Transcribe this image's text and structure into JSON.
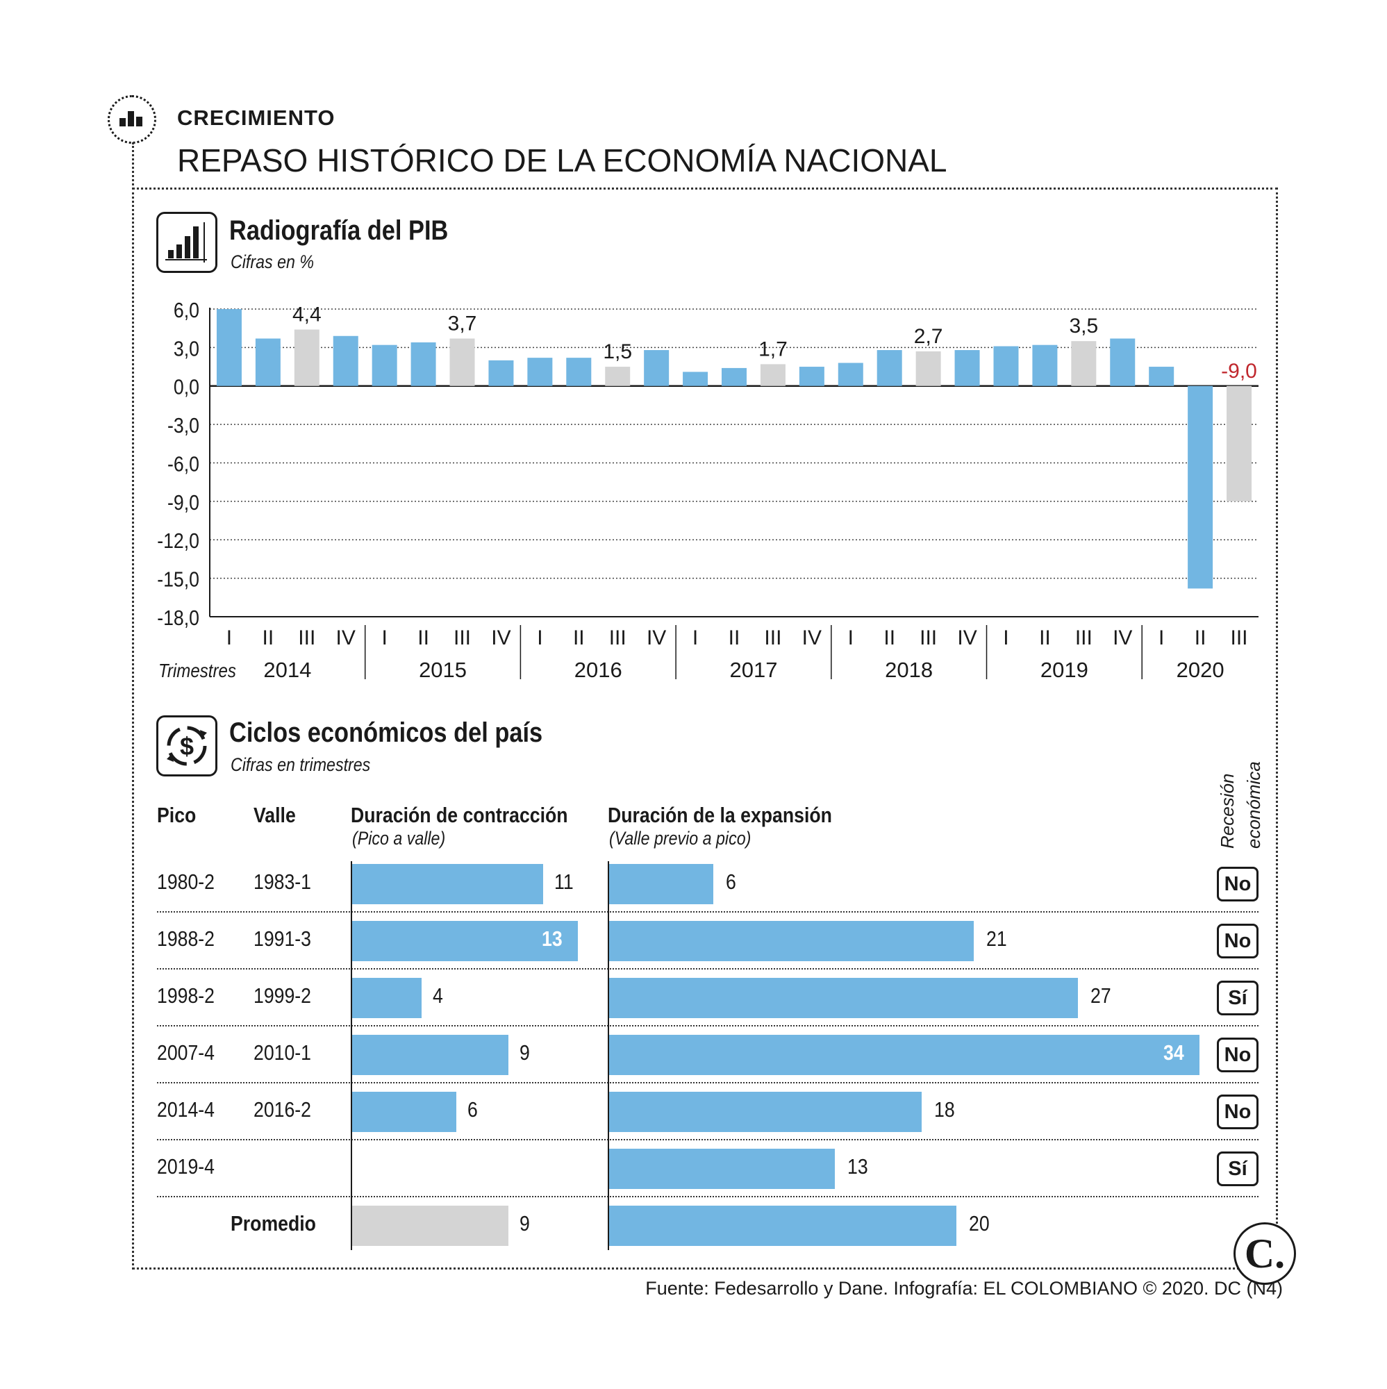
{
  "header": {
    "section_label": "CRECIMIENTO",
    "title": "REPASO HISTÓRICO DE LA ECONOMÍA NACIONAL"
  },
  "pib": {
    "title": "Radiografía del PIB",
    "subtitle": "Cifras en %",
    "trimestres_label": "Trimestres"
  },
  "ciclos": {
    "title": "Ciclos económicos del país",
    "subtitle": "Cifras en trimestres",
    "headers": {
      "pico": "Pico",
      "valle": "Valle",
      "contraccion": "Duración de contracción",
      "contraccion_note": "(Pico a valle)",
      "expansion": "Duración de la expansión",
      "expansion_note": "(Valle previo a pico)",
      "recesion_1": "Recesión",
      "recesion_2": "económica"
    },
    "promedio_label": "Promedio"
  },
  "chart_data": [
    {
      "type": "bar",
      "title": "Radiografía del PIB",
      "subtitle": "Cifras en %",
      "xlabel": "Trimestres",
      "ylabel": "",
      "ylim": [
        -18,
        6
      ],
      "yticks": [
        "6,0",
        "3,0",
        "0,0",
        "-3,0",
        "-6,0",
        "-9,0",
        "-12,0",
        "-15,0",
        "-18,0"
      ],
      "ytick_values": [
        6,
        3,
        0,
        -3,
        -6,
        -9,
        -12,
        -15,
        -18
      ],
      "grid": true,
      "colors": {
        "quarter": "#72b6e2",
        "annual": "#d4d4d4",
        "negative_label": "#c0272d"
      },
      "years": [
        "2014",
        "2015",
        "2016",
        "2017",
        "2018",
        "2019",
        "2020"
      ],
      "quarter_labels": [
        "I",
        "II",
        "III",
        "IV"
      ],
      "bars": [
        {
          "year": "2014",
          "quarter": "I",
          "value": 6.0,
          "kind": "quarter"
        },
        {
          "year": "2014",
          "quarter": "II",
          "value": 3.7,
          "kind": "quarter"
        },
        {
          "year": "2014",
          "quarter": "III",
          "value": 4.4,
          "kind": "annual",
          "label": "4,4"
        },
        {
          "year": "2014",
          "quarter": "IV",
          "value": 3.9,
          "kind": "quarter"
        },
        {
          "year": "2015",
          "quarter": "I",
          "value": 3.2,
          "kind": "quarter"
        },
        {
          "year": "2015",
          "quarter": "II",
          "value": 3.4,
          "kind": "quarter"
        },
        {
          "year": "2015",
          "quarter": "III",
          "value": 3.7,
          "kind": "annual",
          "label": "3,7"
        },
        {
          "year": "2015",
          "quarter": "IV",
          "value": 2.0,
          "kind": "quarter"
        },
        {
          "year": "2016",
          "quarter": "I",
          "value": 2.2,
          "kind": "quarter"
        },
        {
          "year": "2016",
          "quarter": "II",
          "value": 2.2,
          "kind": "quarter"
        },
        {
          "year": "2016",
          "quarter": "III",
          "value": 1.5,
          "kind": "annual",
          "label": "1,5"
        },
        {
          "year": "2016",
          "quarter": "IV",
          "value": 2.8,
          "kind": "quarter"
        },
        {
          "year": "2017",
          "quarter": "I",
          "value": 1.1,
          "kind": "quarter"
        },
        {
          "year": "2017",
          "quarter": "II",
          "value": 1.4,
          "kind": "quarter"
        },
        {
          "year": "2017",
          "quarter": "III",
          "value": 1.7,
          "kind": "annual",
          "label": "1,7"
        },
        {
          "year": "2017",
          "quarter": "IV",
          "value": 1.5,
          "kind": "quarter"
        },
        {
          "year": "2018",
          "quarter": "I",
          "value": 1.8,
          "kind": "quarter"
        },
        {
          "year": "2018",
          "quarter": "II",
          "value": 2.8,
          "kind": "quarter"
        },
        {
          "year": "2018",
          "quarter": "III",
          "value": 2.7,
          "kind": "annual",
          "label": "2,7"
        },
        {
          "year": "2018",
          "quarter": "IV",
          "value": 2.8,
          "kind": "quarter"
        },
        {
          "year": "2019",
          "quarter": "I",
          "value": 3.1,
          "kind": "quarter"
        },
        {
          "year": "2019",
          "quarter": "II",
          "value": 3.2,
          "kind": "quarter"
        },
        {
          "year": "2019",
          "quarter": "III",
          "value": 3.5,
          "kind": "annual",
          "label": "3,5"
        },
        {
          "year": "2019",
          "quarter": "IV",
          "value": 3.7,
          "kind": "quarter"
        },
        {
          "year": "2020",
          "quarter": "I",
          "value": 1.5,
          "kind": "quarter"
        },
        {
          "year": "2020",
          "quarter": "II",
          "value": -15.8,
          "kind": "quarter"
        },
        {
          "year": "2020",
          "quarter": "III",
          "value": -9.0,
          "kind": "annual",
          "label": "-9,0"
        }
      ]
    },
    {
      "type": "bar",
      "title": "Ciclos económicos del país",
      "subtitle": "Cifras en trimestres",
      "orientation": "horizontal",
      "xlabel": "",
      "ylabel": "",
      "contraction_max": 13,
      "expansion_max": 34,
      "rows": [
        {
          "pico": "1980-2",
          "valle": "1983-1",
          "contraccion": 11,
          "expansion": 6,
          "recesion": "No"
        },
        {
          "pico": "1988-2",
          "valle": "1991-3",
          "contraccion": 13,
          "expansion": 21,
          "recesion": "No"
        },
        {
          "pico": "1998-2",
          "valle": "1999-2",
          "contraccion": 4,
          "expansion": 27,
          "recesion": "Sí"
        },
        {
          "pico": "2007-4",
          "valle": "2010-1",
          "contraccion": 9,
          "expansion": 34,
          "recesion": "No"
        },
        {
          "pico": "2014-4",
          "valle": "2016-2",
          "contraccion": 6,
          "expansion": 18,
          "recesion": "No"
        },
        {
          "pico": "2019-4",
          "valle": "",
          "contraccion": null,
          "expansion": 13,
          "recesion": "Sí"
        }
      ],
      "promedio": {
        "contraccion": 9,
        "expansion": 20
      }
    }
  ],
  "footer": {
    "source": "Fuente: Fedesarrollo y Dane. Infografía: EL COLOMBIANO © 2020. DC (N4)",
    "logo": "C."
  }
}
